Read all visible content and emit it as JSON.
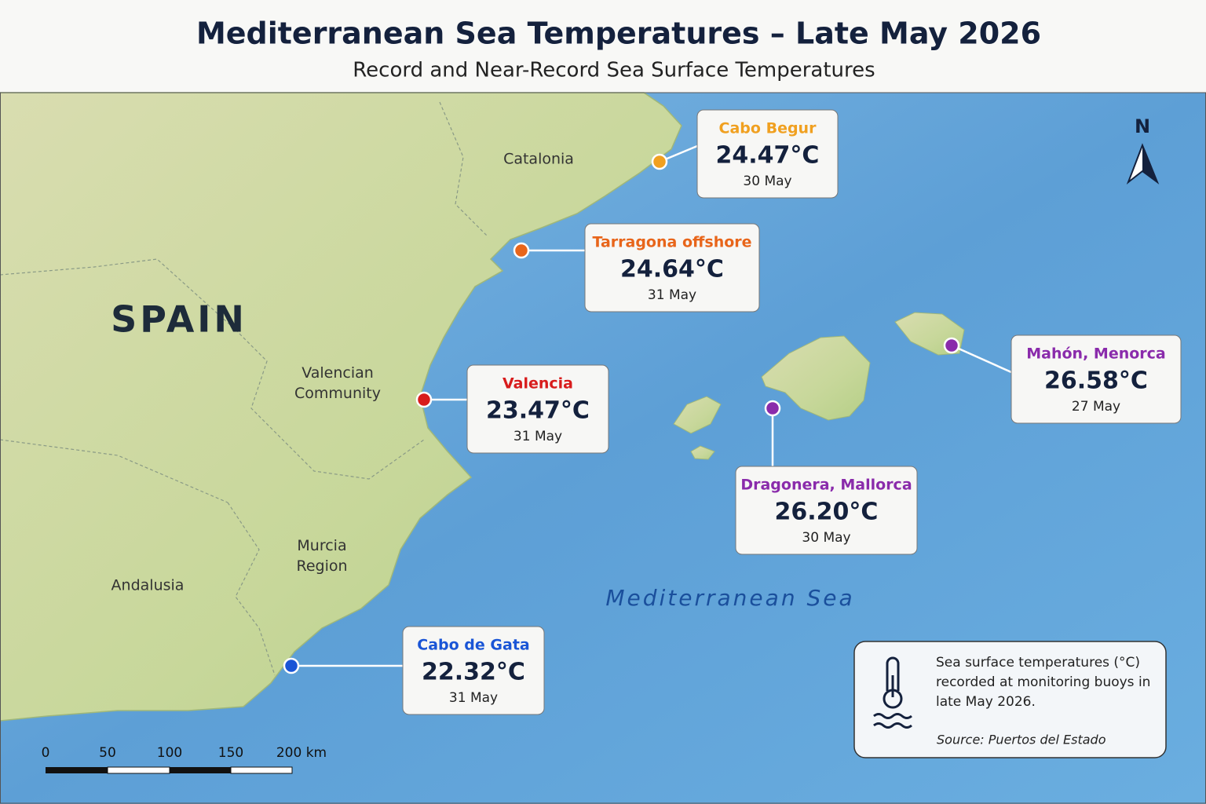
{
  "header": {
    "title": "Mediterranean Sea Temperatures – Late May 2026",
    "subtitle": "Record and Near-Record Sea Surface Temperatures"
  },
  "map": {
    "country": "SPAIN",
    "sea": "Mediterranean Sea",
    "north": "N",
    "regions": [
      "Catalonia",
      "Valencian Community",
      "Murcia Region",
      "Andalusia"
    ]
  },
  "stations": [
    {
      "name": "Cabo Begur",
      "temperature": "24.47°C",
      "date": "30 May",
      "color": "#f0a020"
    },
    {
      "name": "Tarragona offshore",
      "temperature": "24.64°C",
      "date": "31 May",
      "color": "#e8651a"
    },
    {
      "name": "Valencia",
      "temperature": "23.47°C",
      "date": "31 May",
      "color": "#d81c1c"
    },
    {
      "name": "Mahón, Menorca",
      "temperature": "26.58°C",
      "date": "27 May",
      "color": "#8a2bab"
    },
    {
      "name": "Dragonera, Mallorca",
      "temperature": "26.20°C",
      "date": "30 May",
      "color": "#8a2bab"
    },
    {
      "name": "Cabo de Gata",
      "temperature": "22.32°C",
      "date": "31 May",
      "color": "#1a55d6"
    }
  ],
  "scale_bar": [
    "0",
    "50",
    "100",
    "150",
    "200 km"
  ],
  "legend": {
    "text": "Sea surface temperatures (°C) recorded at monitoring buoys in late May 2026.",
    "source": "Source: Puertos del Estado"
  }
}
